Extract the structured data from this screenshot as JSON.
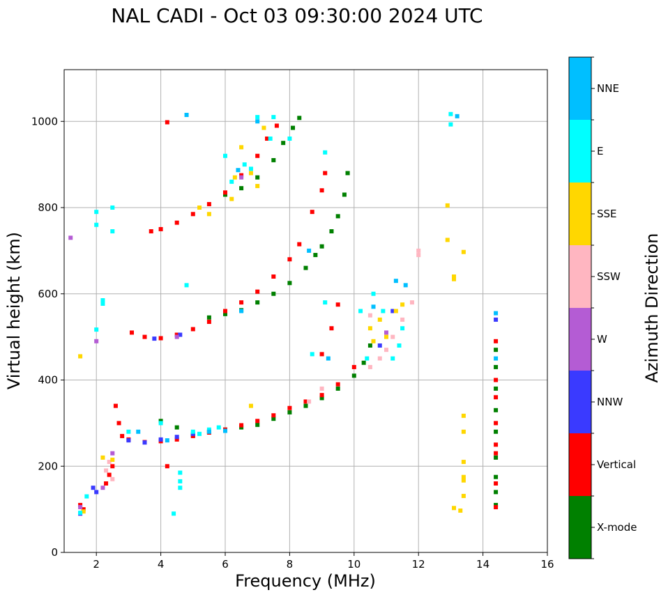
{
  "chart_data": {
    "type": "scatter",
    "title": "NAL CADI - Oct 03 09:30:00 2024 UTC",
    "xlabel": "Frequency (MHz)",
    "ylabel": "Virtual height (km)",
    "xlim": [
      1,
      16
    ],
    "ylim": [
      0,
      1120
    ],
    "xticks": [
      2,
      4,
      6,
      8,
      10,
      12,
      14,
      16
    ],
    "yticks": [
      0,
      200,
      400,
      600,
      800,
      1000
    ],
    "grid": true,
    "colorbar": {
      "label": "Azimuth Direction",
      "categories": [
        {
          "name": "X-mode",
          "color": "#008000"
        },
        {
          "name": "Vertical",
          "color": "#ff0000"
        },
        {
          "name": "NNW",
          "color": "#3a3aff"
        },
        {
          "name": "W",
          "color": "#b45cd4"
        },
        {
          "name": "SSW",
          "color": "#ffb6c1"
        },
        {
          "name": "SSE",
          "color": "#ffd700"
        },
        {
          "name": "E",
          "color": "#00ffff"
        },
        {
          "name": "NNE",
          "color": "#00bfff"
        }
      ]
    },
    "series": [
      {
        "name": "X-mode",
        "points": [
          [
            5.0,
            272
          ],
          [
            5.5,
            280
          ],
          [
            6.0,
            285
          ],
          [
            6.5,
            290
          ],
          [
            7.0,
            296
          ],
          [
            7.5,
            310
          ],
          [
            8.0,
            325
          ],
          [
            8.5,
            340
          ],
          [
            9.0,
            358
          ],
          [
            9.5,
            380
          ],
          [
            10.0,
            410
          ],
          [
            10.3,
            440
          ],
          [
            10.5,
            480
          ],
          [
            4.5,
            290
          ],
          [
            4.0,
            305
          ],
          [
            5.5,
            545
          ],
          [
            6.0,
            553
          ],
          [
            6.5,
            562
          ],
          [
            7.0,
            580
          ],
          [
            7.5,
            600
          ],
          [
            8.0,
            625
          ],
          [
            8.5,
            660
          ],
          [
            8.8,
            690
          ],
          [
            9.0,
            710
          ],
          [
            9.3,
            745
          ],
          [
            9.5,
            780
          ],
          [
            9.7,
            830
          ],
          [
            9.8,
            880
          ],
          [
            6.0,
            830
          ],
          [
            6.5,
            845
          ],
          [
            7.0,
            870
          ],
          [
            7.5,
            910
          ],
          [
            7.8,
            950
          ],
          [
            8.1,
            985
          ],
          [
            8.3,
            1008
          ],
          [
            9.8,
            880
          ],
          [
            14.4,
            470
          ],
          [
            14.4,
            430
          ],
          [
            14.4,
            380
          ],
          [
            14.4,
            330
          ],
          [
            14.4,
            280
          ],
          [
            14.4,
            220
          ],
          [
            14.4,
            175
          ],
          [
            14.4,
            140
          ],
          [
            14.4,
            110
          ]
        ]
      },
      {
        "name": "Vertical",
        "points": [
          [
            1.5,
            110
          ],
          [
            1.6,
            100
          ],
          [
            2.3,
            160
          ],
          [
            2.4,
            180
          ],
          [
            2.5,
            200
          ],
          [
            2.6,
            340
          ],
          [
            2.7,
            300
          ],
          [
            2.8,
            270
          ],
          [
            3.0,
            262
          ],
          [
            3.5,
            256
          ],
          [
            4.0,
            258
          ],
          [
            4.5,
            262
          ],
          [
            5.0,
            270
          ],
          [
            5.5,
            278
          ],
          [
            6.0,
            285
          ],
          [
            6.5,
            295
          ],
          [
            7.0,
            305
          ],
          [
            7.5,
            318
          ],
          [
            8.0,
            335
          ],
          [
            8.5,
            350
          ],
          [
            9.0,
            365
          ],
          [
            9.5,
            390
          ],
          [
            10.0,
            430
          ],
          [
            3.1,
            510
          ],
          [
            3.5,
            500
          ],
          [
            4.0,
            497
          ],
          [
            4.5,
            505
          ],
          [
            5.0,
            518
          ],
          [
            5.5,
            535
          ],
          [
            6.0,
            560
          ],
          [
            6.5,
            580
          ],
          [
            7.0,
            605
          ],
          [
            7.5,
            640
          ],
          [
            8.0,
            680
          ],
          [
            8.3,
            715
          ],
          [
            8.7,
            790
          ],
          [
            9.0,
            840
          ],
          [
            9.1,
            880
          ],
          [
            3.7,
            745
          ],
          [
            4.0,
            750
          ],
          [
            4.5,
            765
          ],
          [
            5.0,
            785
          ],
          [
            5.5,
            808
          ],
          [
            6.0,
            835
          ],
          [
            6.5,
            875
          ],
          [
            7.0,
            920
          ],
          [
            7.3,
            960
          ],
          [
            7.6,
            990
          ],
          [
            9.0,
            460
          ],
          [
            9.3,
            520
          ],
          [
            9.5,
            575
          ],
          [
            14.4,
            490
          ],
          [
            14.4,
            400
          ],
          [
            14.4,
            360
          ],
          [
            14.4,
            300
          ],
          [
            14.4,
            250
          ],
          [
            14.4,
            230
          ],
          [
            14.4,
            160
          ],
          [
            14.4,
            105
          ],
          [
            4.2,
            998
          ],
          [
            4.2,
            200
          ]
        ]
      },
      {
        "name": "NNW",
        "points": [
          [
            3.0,
            260
          ],
          [
            3.5,
            255
          ],
          [
            4.0,
            262
          ],
          [
            4.5,
            268
          ],
          [
            5.0,
            275
          ],
          [
            3.8,
            496
          ],
          [
            4.6,
            505
          ],
          [
            1.9,
            150
          ],
          [
            2.0,
            140
          ],
          [
            10.8,
            480
          ],
          [
            11.2,
            560
          ],
          [
            14.4,
            540
          ],
          [
            1.5,
            90
          ]
        ]
      },
      {
        "name": "W",
        "points": [
          [
            1.5,
            105
          ],
          [
            2.2,
            150
          ],
          [
            2.5,
            230
          ],
          [
            4.5,
            500
          ],
          [
            6.5,
            870
          ],
          [
            11.0,
            510
          ],
          [
            1.2,
            730
          ],
          [
            2.0,
            490
          ]
        ]
      },
      {
        "name": "SSW",
        "points": [
          [
            2.3,
            190
          ],
          [
            2.4,
            210
          ],
          [
            2.5,
            170
          ],
          [
            10.5,
            430
          ],
          [
            10.8,
            450
          ],
          [
            11.0,
            470
          ],
          [
            11.2,
            500
          ],
          [
            11.5,
            540
          ],
          [
            11.8,
            580
          ],
          [
            12.0,
            700
          ],
          [
            12.0,
            690
          ],
          [
            9.0,
            380
          ],
          [
            8.6,
            350
          ],
          [
            10.5,
            550
          ]
        ]
      },
      {
        "name": "SSE",
        "points": [
          [
            1.5,
            455
          ],
          [
            1.6,
            95
          ],
          [
            2.2,
            220
          ],
          [
            2.5,
            215
          ],
          [
            6.3,
            870
          ],
          [
            6.8,
            880
          ],
          [
            7.0,
            850
          ],
          [
            10.5,
            520
          ],
          [
            10.8,
            540
          ],
          [
            11.0,
            500
          ],
          [
            11.3,
            560
          ],
          [
            11.5,
            575
          ],
          [
            10.6,
            490
          ],
          [
            12.9,
            805
          ],
          [
            12.9,
            725
          ],
          [
            13.1,
            640
          ],
          [
            13.1,
            634
          ],
          [
            13.4,
            697
          ],
          [
            13.4,
            317
          ],
          [
            13.4,
            280
          ],
          [
            13.4,
            210
          ],
          [
            13.4,
            175
          ],
          [
            13.4,
            167
          ],
          [
            13.4,
            131
          ],
          [
            13.1,
            103
          ],
          [
            13.3,
            97
          ],
          [
            6.8,
            340
          ],
          [
            7.2,
            985
          ],
          [
            6.5,
            940
          ],
          [
            5.5,
            785
          ],
          [
            5.2,
            800
          ],
          [
            6.2,
            820
          ]
        ]
      },
      {
        "name": "E",
        "points": [
          [
            2.0,
            790
          ],
          [
            2.0,
            760
          ],
          [
            2.2,
            585
          ],
          [
            2.2,
            577
          ],
          [
            2.0,
            517
          ],
          [
            2.5,
            800
          ],
          [
            2.5,
            745
          ],
          [
            4.6,
            185
          ],
          [
            4.6,
            165
          ],
          [
            4.6,
            150
          ],
          [
            4.4,
            90
          ],
          [
            5.0,
            280
          ],
          [
            5.5,
            285
          ],
          [
            5.8,
            290
          ],
          [
            7.0,
            1010
          ],
          [
            7.5,
            1010
          ],
          [
            6.0,
            920
          ],
          [
            6.2,
            860
          ],
          [
            6.6,
            900
          ],
          [
            6.8,
            890
          ],
          [
            7.4,
            960
          ],
          [
            8.0,
            960
          ],
          [
            8.7,
            460
          ],
          [
            9.1,
            580
          ],
          [
            9.1,
            928
          ],
          [
            10.2,
            560
          ],
          [
            10.4,
            450
          ],
          [
            10.6,
            600
          ],
          [
            10.9,
            560
          ],
          [
            11.2,
            450
          ],
          [
            11.4,
            480
          ],
          [
            11.5,
            520
          ],
          [
            13.0,
            993
          ],
          [
            13.0,
            1017
          ],
          [
            3.0,
            280
          ],
          [
            4.0,
            300
          ],
          [
            5.2,
            275
          ],
          [
            1.7,
            130
          ],
          [
            1.5,
            92
          ],
          [
            4.8,
            620
          ]
        ]
      },
      {
        "name": "NNE",
        "points": [
          [
            4.8,
            1015
          ],
          [
            5.5,
            280
          ],
          [
            6.0,
            282
          ],
          [
            6.5,
            560
          ],
          [
            7.0,
            1000
          ],
          [
            10.6,
            570
          ],
          [
            11.3,
            630
          ],
          [
            11.6,
            620
          ],
          [
            13.2,
            1012
          ],
          [
            14.4,
            555
          ],
          [
            14.4,
            450
          ],
          [
            3.3,
            280
          ],
          [
            4.2,
            260
          ],
          [
            6.4,
            887
          ],
          [
            8.6,
            700
          ],
          [
            9.2,
            450
          ]
        ]
      }
    ]
  }
}
